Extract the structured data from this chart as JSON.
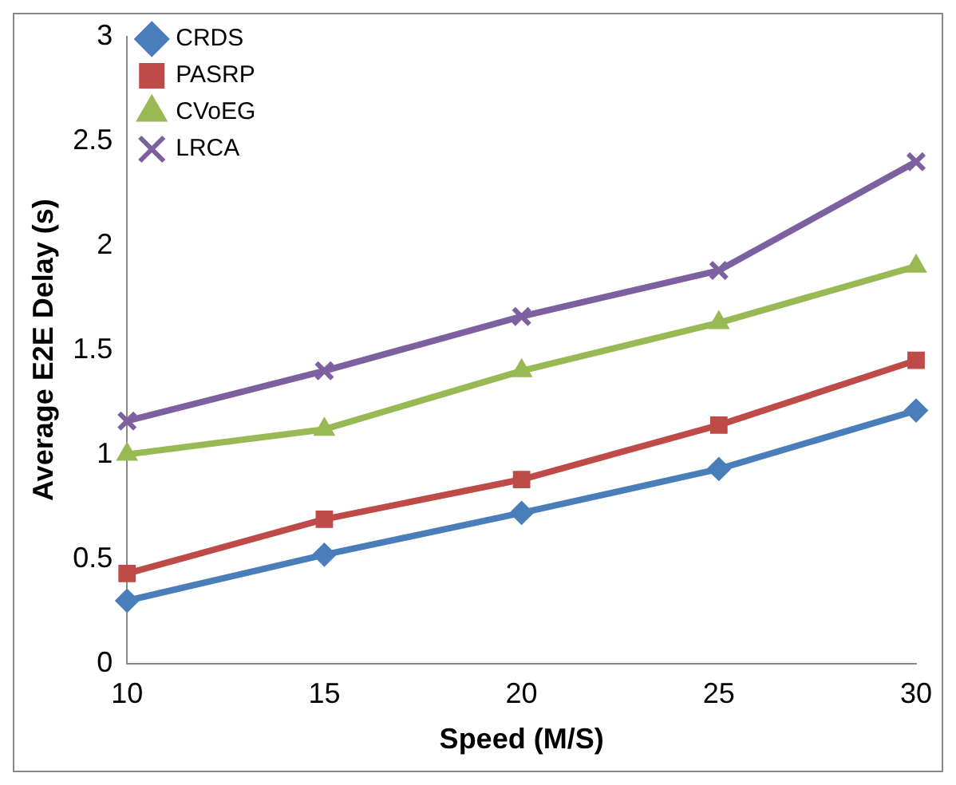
{
  "chart_data": {
    "type": "line",
    "xlabel": "Speed (M/S)",
    "ylabel": "Average E2E Delay (s)",
    "categories": [
      "10",
      "15",
      "20",
      "25",
      "30"
    ],
    "ylim": [
      0,
      3
    ],
    "yticks": [
      0,
      0.5,
      1,
      1.5,
      2,
      2.5,
      3
    ],
    "grid": false,
    "legend": "top left",
    "line_style": "solid",
    "series": [
      {
        "name": "CRDS",
        "color": "#4a7ebb",
        "marker": "diamond",
        "values": [
          0.3,
          0.52,
          0.72,
          0.93,
          1.21
        ]
      },
      {
        "name": "PASRP",
        "color": "#be4b48",
        "marker": "square",
        "values": [
          0.43,
          0.69,
          0.88,
          1.14,
          1.45
        ]
      },
      {
        "name": "CVoEG",
        "color": "#98b954",
        "marker": "triangle",
        "values": [
          1.0,
          1.12,
          1.4,
          1.63,
          1.9
        ]
      },
      {
        "name": "LRCA",
        "color": "#7d60a0",
        "marker": "cross",
        "values": [
          1.16,
          1.4,
          1.66,
          1.88,
          2.4
        ]
      }
    ]
  }
}
